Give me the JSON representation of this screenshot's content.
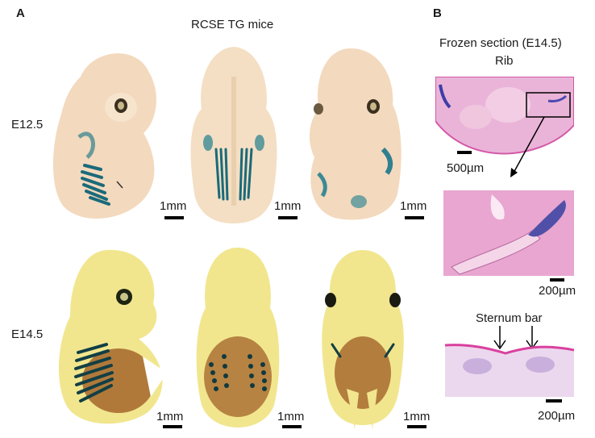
{
  "panel_a": {
    "label": "A",
    "title": "RCSE TG mice",
    "row_labels": [
      "E12.5",
      "E14.5"
    ],
    "scale_label": "1mm"
  },
  "panel_b": {
    "label": "B",
    "title": "Frozen section (E14.5)",
    "subtitle": "Rib",
    "scale_top": "500µm",
    "scale_mid": "200µm",
    "sternum_label": "Sternum bar",
    "scale_bottom": "200µm"
  },
  "colors": {
    "e125_embryo": "#f2d6b8",
    "e145_embryo": "#f0e68a",
    "xgal_stain": "#1a6a7a",
    "he_pink": "#e89ac8"
  }
}
